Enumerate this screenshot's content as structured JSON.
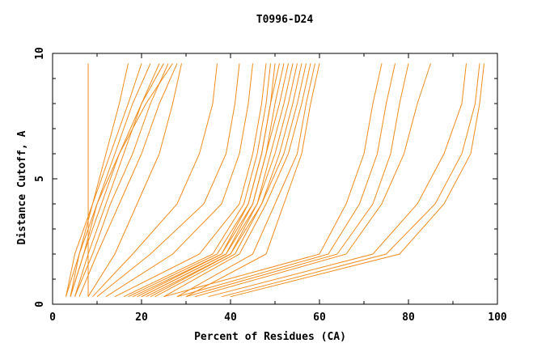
{
  "chart_data": {
    "type": "line",
    "title": "T0996-D24",
    "xlabel": "Percent of Residues (CA)",
    "ylabel": "Distance Cutoff, A",
    "xlim": [
      0,
      100
    ],
    "ylim": [
      0,
      10
    ],
    "x_ticks": [
      "0",
      "20",
      "40",
      "60",
      "80",
      "100"
    ],
    "y_ticks": [
      "0",
      "5",
      "10"
    ],
    "line_color": "#f28c1c",
    "grid": false,
    "series": [
      {
        "x": [
          8,
          8,
          8,
          8,
          8,
          8
        ],
        "y": [
          0.3,
          2,
          4,
          6,
          8,
          9.6
        ]
      },
      {
        "x": [
          4,
          6,
          9,
          13,
          17,
          20
        ],
        "y": [
          0.3,
          2,
          4,
          6,
          8,
          9.6
        ]
      },
      {
        "x": [
          4,
          7,
          10,
          14,
          18,
          22
        ],
        "y": [
          0.3,
          2,
          4,
          6,
          8,
          9.6
        ]
      },
      {
        "x": [
          3,
          5,
          9,
          12,
          15,
          17
        ],
        "y": [
          0.3,
          2,
          4,
          6,
          8,
          9.6
        ]
      },
      {
        "x": [
          5,
          8,
          12,
          16,
          20,
          24
        ],
        "y": [
          0.3,
          2,
          4,
          6,
          8,
          9.6
        ]
      },
      {
        "x": [
          4,
          7,
          11,
          15,
          20,
          25
        ],
        "y": [
          0.3,
          2,
          4,
          6,
          8,
          9.6
        ]
      },
      {
        "x": [
          5,
          9,
          13,
          18,
          22,
          26
        ],
        "y": [
          0.3,
          2,
          4,
          6,
          8,
          9.6
        ]
      },
      {
        "x": [
          6,
          10,
          15,
          20,
          24,
          28
        ],
        "y": [
          0.3,
          2,
          4,
          6,
          8,
          9.6
        ]
      },
      {
        "x": [
          3,
          6,
          10,
          15,
          21,
          27
        ],
        "y": [
          0.3,
          2,
          4,
          6,
          8,
          9.6
        ]
      },
      {
        "x": [
          8,
          14,
          19,
          24,
          27,
          29
        ],
        "y": [
          0.3,
          2,
          4,
          6,
          8,
          9.6
        ]
      },
      {
        "x": [
          9,
          18,
          28,
          33,
          36,
          37
        ],
        "y": [
          0.3,
          2,
          4,
          6,
          8,
          9.6
        ]
      },
      {
        "x": [
          10,
          22,
          34,
          39,
          41,
          42
        ],
        "y": [
          0.3,
          2,
          4,
          6,
          8,
          9.6
        ]
      },
      {
        "x": [
          12,
          27,
          38,
          42,
          44,
          45
        ],
        "y": [
          0.3,
          2,
          4,
          6,
          8,
          9.6
        ]
      },
      {
        "x": [
          14,
          33,
          42,
          45,
          47,
          48
        ],
        "y": [
          0.3,
          2,
          4,
          6,
          8,
          9.6
        ]
      },
      {
        "x": [
          16,
          36,
          43,
          46,
          48,
          49
        ],
        "y": [
          0.3,
          2,
          4,
          6,
          8,
          9.6
        ]
      },
      {
        "x": [
          17,
          37,
          44,
          47,
          49,
          50
        ],
        "y": [
          0.3,
          2,
          4,
          6,
          8,
          9.6
        ]
      },
      {
        "x": [
          18,
          38,
          44,
          47,
          49,
          51
        ],
        "y": [
          0.3,
          2,
          4,
          6,
          8,
          9.6
        ]
      },
      {
        "x": [
          19,
          38,
          45,
          48,
          50,
          52
        ],
        "y": [
          0.3,
          2,
          4,
          6,
          8,
          9.6
        ]
      },
      {
        "x": [
          20,
          39,
          45,
          48,
          51,
          53
        ],
        "y": [
          0.3,
          2,
          4,
          6,
          8,
          9.6
        ]
      },
      {
        "x": [
          20,
          39,
          46,
          49,
          52,
          54
        ],
        "y": [
          0.3,
          2,
          4,
          6,
          8,
          9.6
        ]
      },
      {
        "x": [
          21,
          40,
          46,
          50,
          53,
          55
        ],
        "y": [
          0.3,
          2,
          4,
          6,
          8,
          9.6
        ]
      },
      {
        "x": [
          22,
          40,
          47,
          51,
          54,
          56
        ],
        "y": [
          0.3,
          2,
          4,
          6,
          8,
          9.6
        ]
      },
      {
        "x": [
          23,
          41,
          47,
          52,
          55,
          57
        ],
        "y": [
          0.3,
          2,
          4,
          6,
          8,
          9.6
        ]
      },
      {
        "x": [
          25,
          42,
          48,
          53,
          56,
          58
        ],
        "y": [
          0.3,
          2,
          4,
          6,
          8,
          9.6
        ]
      },
      {
        "x": [
          28,
          45,
          50,
          55,
          57,
          59
        ],
        "y": [
          0.3,
          2,
          4,
          6,
          8,
          9.6
        ]
      },
      {
        "x": [
          30,
          48,
          52,
          56,
          58,
          60
        ],
        "y": [
          0.3,
          2,
          4,
          6,
          8,
          9.6
        ]
      },
      {
        "x": [
          25,
          60,
          66,
          70,
          72,
          74
        ],
        "y": [
          0.3,
          2,
          4,
          6,
          8,
          9.6
        ]
      },
      {
        "x": [
          28,
          62,
          69,
          73,
          75,
          77
        ],
        "y": [
          0.3,
          2,
          4,
          6,
          8,
          9.6
        ]
      },
      {
        "x": [
          30,
          64,
          72,
          76,
          78,
          80
        ],
        "y": [
          0.3,
          2,
          4,
          6,
          8,
          9.6
        ]
      },
      {
        "x": [
          32,
          66,
          74,
          79,
          82,
          85
        ],
        "y": [
          0.3,
          2,
          4,
          6,
          8,
          9.6
        ]
      },
      {
        "x": [
          35,
          72,
          82,
          88,
          92,
          93
        ],
        "y": [
          0.3,
          2,
          4,
          6,
          8,
          9.6
        ]
      },
      {
        "x": [
          38,
          75,
          86,
          92,
          95,
          96
        ],
        "y": [
          0.3,
          2,
          4,
          6,
          8,
          9.6
        ]
      },
      {
        "x": [
          40,
          78,
          88,
          94,
          96,
          97
        ],
        "y": [
          0.3,
          2,
          4,
          6,
          8,
          9.6
        ]
      }
    ]
  }
}
